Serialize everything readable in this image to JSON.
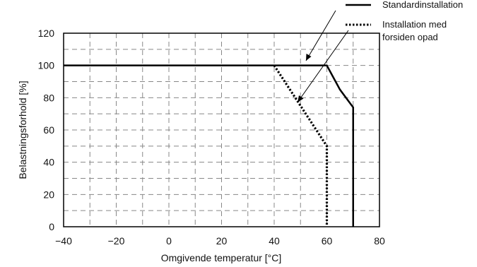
{
  "chart_data": {
    "type": "line",
    "xlabel": "Omgivende temperatur [°C]",
    "ylabel": "Belastningsforhold [%]",
    "xlim": [
      -40,
      80
    ],
    "ylim": [
      0,
      120
    ],
    "x_ticks": [
      "−40",
      "−20",
      "0",
      "20",
      "40",
      "60",
      "80"
    ],
    "y_ticks": [
      "0",
      "20",
      "40",
      "60",
      "80",
      "100",
      "120"
    ],
    "x_tick_values": [
      -40,
      -20,
      0,
      20,
      40,
      60,
      80
    ],
    "y_tick_values": [
      0,
      20,
      40,
      60,
      80,
      100,
      120
    ],
    "grid": true,
    "grid_style": "dashed",
    "legend_position": "top-right, outside plot",
    "series": [
      {
        "name": "Standardinstallation",
        "style": "solid",
        "color": "#000000",
        "points": [
          [
            -40,
            100
          ],
          [
            60,
            100
          ],
          [
            65,
            85
          ],
          [
            70,
            74
          ],
          [
            70,
            0
          ]
        ]
      },
      {
        "name": "Installation med forsiden opad",
        "style": "dotted",
        "color": "#000000",
        "points": [
          [
            40,
            100
          ],
          [
            50,
            75
          ],
          [
            60,
            50
          ],
          [
            60,
            0
          ]
        ]
      }
    ],
    "legend": {
      "line1": "Standardinstallation",
      "line2a": "Installation med",
      "line2b": "forsiden opad"
    }
  }
}
